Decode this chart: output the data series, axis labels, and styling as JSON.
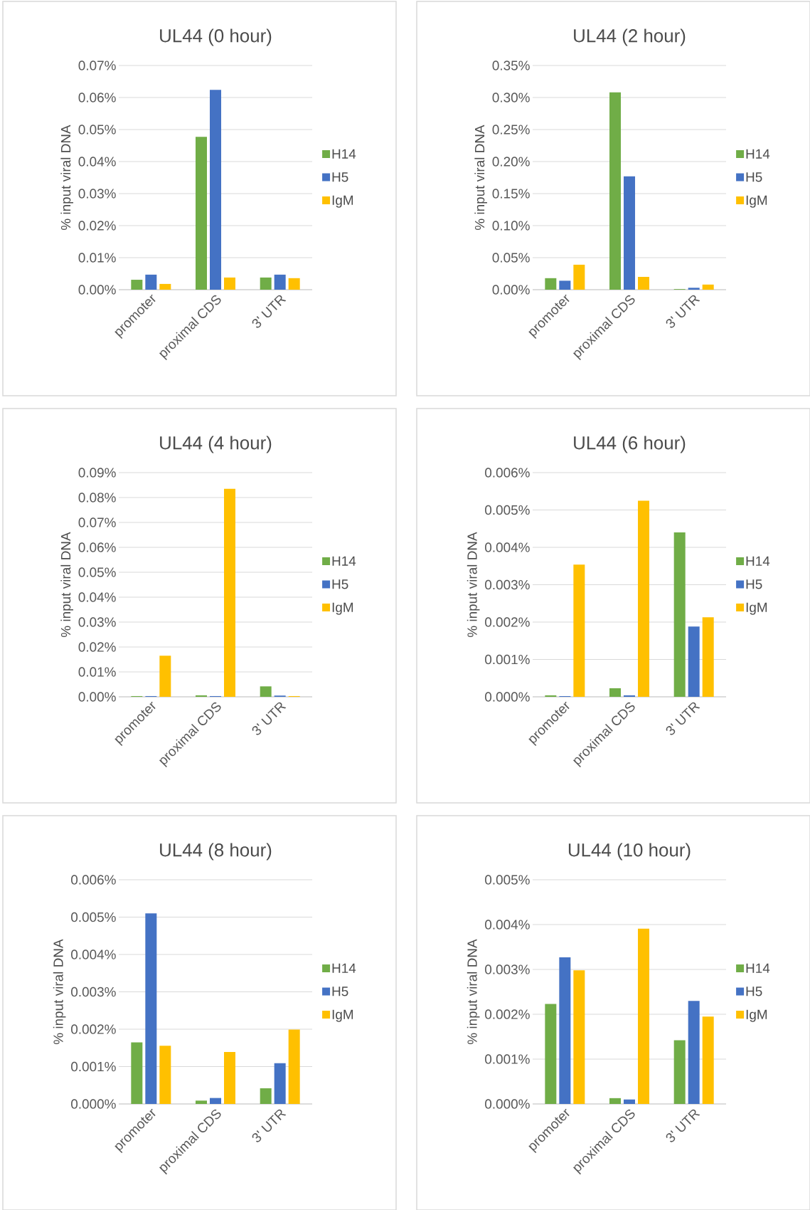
{
  "chart_data": [
    {
      "type": "bar",
      "title": "UL44 (0 hour)",
      "ylabel": "% input viral DNA",
      "categories": [
        "promoter",
        "proximal CDS",
        "3' UTR"
      ],
      "series": [
        {
          "name": "H14",
          "color": "#70ad47",
          "values": [
            0.0031,
            0.0477,
            0.0038
          ]
        },
        {
          "name": "H5",
          "color": "#4472c4",
          "values": [
            0.0047,
            0.0624,
            0.0047
          ]
        },
        {
          "name": "IgM",
          "color": "#ffc000",
          "values": [
            0.0018,
            0.0038,
            0.0036
          ]
        }
      ],
      "ylim": [
        0,
        0.07
      ],
      "yticks": [
        {
          "value": 0,
          "label": "0.00%"
        },
        {
          "value": 0.01,
          "label": "0.01%"
        },
        {
          "value": 0.02,
          "label": "0.02%"
        },
        {
          "value": 0.03,
          "label": "0.03%"
        },
        {
          "value": 0.04,
          "label": "0.04%"
        },
        {
          "value": 0.05,
          "label": "0.05%"
        },
        {
          "value": 0.06,
          "label": "0.06%"
        },
        {
          "value": 0.07,
          "label": "0.07%"
        }
      ],
      "grid": "y",
      "legend": "right"
    },
    {
      "type": "bar",
      "title": "UL44 (2 hour)",
      "ylabel": "% input viral DNA",
      "categories": [
        "promoter",
        "proximal CDS",
        "3' UTR"
      ],
      "series": [
        {
          "name": "H14",
          "color": "#70ad47",
          "values": [
            0.018,
            0.308,
            0.001
          ]
        },
        {
          "name": "H5",
          "color": "#4472c4",
          "values": [
            0.014,
            0.177,
            0.003
          ]
        },
        {
          "name": "IgM",
          "color": "#ffc000",
          "values": [
            0.039,
            0.02,
            0.008
          ]
        }
      ],
      "ylim": [
        0,
        0.35
      ],
      "yticks": [
        {
          "value": 0,
          "label": "0.00%"
        },
        {
          "value": 0.05,
          "label": "0.05%"
        },
        {
          "value": 0.1,
          "label": "0.10%"
        },
        {
          "value": 0.15,
          "label": "0.15%"
        },
        {
          "value": 0.2,
          "label": "0.20%"
        },
        {
          "value": 0.25,
          "label": "0.25%"
        },
        {
          "value": 0.3,
          "label": "0.30%"
        },
        {
          "value": 0.35,
          "label": "0.35%"
        }
      ],
      "grid": "y",
      "legend": "right"
    },
    {
      "type": "bar",
      "title": "UL44 (4 hour)",
      "ylabel": "% input viral DNA",
      "categories": [
        "promoter",
        "proximal CDS",
        "3' UTR"
      ],
      "series": [
        {
          "name": "H14",
          "color": "#70ad47",
          "values": [
            0.0003,
            0.0006,
            0.0042
          ]
        },
        {
          "name": "H5",
          "color": "#4472c4",
          "values": [
            0.0003,
            0.0003,
            0.0005
          ]
        },
        {
          "name": "IgM",
          "color": "#ffc000",
          "values": [
            0.0165,
            0.0835,
            0.0003
          ]
        }
      ],
      "ylim": [
        0,
        0.09
      ],
      "yticks": [
        {
          "value": 0,
          "label": "0.00%"
        },
        {
          "value": 0.01,
          "label": "0.01%"
        },
        {
          "value": 0.02,
          "label": "0.02%"
        },
        {
          "value": 0.03,
          "label": "0.03%"
        },
        {
          "value": 0.04,
          "label": "0.04%"
        },
        {
          "value": 0.05,
          "label": "0.05%"
        },
        {
          "value": 0.06,
          "label": "0.06%"
        },
        {
          "value": 0.07,
          "label": "0.07%"
        },
        {
          "value": 0.08,
          "label": "0.08%"
        },
        {
          "value": 0.09,
          "label": "0.09%"
        }
      ],
      "grid": "y",
      "legend": "right"
    },
    {
      "type": "bar",
      "title": "UL44 (6 hour)",
      "ylabel": "% input viral DNA",
      "categories": [
        "promoter",
        "proximal CDS",
        "3' UTR"
      ],
      "series": [
        {
          "name": "H14",
          "color": "#70ad47",
          "values": [
            4e-05,
            0.00023,
            0.0044
          ]
        },
        {
          "name": "H5",
          "color": "#4472c4",
          "values": [
            2e-05,
            4e-05,
            0.00188
          ]
        },
        {
          "name": "IgM",
          "color": "#ffc000",
          "values": [
            0.00354,
            0.00525,
            0.00213
          ]
        }
      ],
      "ylim": [
        0,
        0.006
      ],
      "yticks": [
        {
          "value": 0,
          "label": "0.000%"
        },
        {
          "value": 0.001,
          "label": "0.001%"
        },
        {
          "value": 0.002,
          "label": "0.002%"
        },
        {
          "value": 0.003,
          "label": "0.003%"
        },
        {
          "value": 0.004,
          "label": "0.004%"
        },
        {
          "value": 0.005,
          "label": "0.005%"
        },
        {
          "value": 0.006,
          "label": "0.006%"
        }
      ],
      "grid": "y",
      "legend": "right"
    },
    {
      "type": "bar",
      "title": "UL44 (8 hour)",
      "ylabel": "% input viral DNA",
      "categories": [
        "promoter",
        "proximal CDS",
        "3' UTR"
      ],
      "series": [
        {
          "name": "H14",
          "color": "#70ad47",
          "values": [
            0.00165,
            9e-05,
            0.00042
          ]
        },
        {
          "name": "H5",
          "color": "#4472c4",
          "values": [
            0.0051,
            0.00016,
            0.00109
          ]
        },
        {
          "name": "IgM",
          "color": "#ffc000",
          "values": [
            0.00156,
            0.00139,
            0.00199
          ]
        }
      ],
      "ylim": [
        0,
        0.006
      ],
      "yticks": [
        {
          "value": 0,
          "label": "0.000%"
        },
        {
          "value": 0.001,
          "label": "0.001%"
        },
        {
          "value": 0.002,
          "label": "0.002%"
        },
        {
          "value": 0.003,
          "label": "0.003%"
        },
        {
          "value": 0.004,
          "label": "0.004%"
        },
        {
          "value": 0.005,
          "label": "0.005%"
        },
        {
          "value": 0.006,
          "label": "0.006%"
        }
      ],
      "grid": "y",
      "legend": "right"
    },
    {
      "type": "bar",
      "title": "UL44 (10 hour)",
      "ylabel": "% input viral DNA",
      "categories": [
        "promoter",
        "proximal CDS",
        "3' UTR"
      ],
      "series": [
        {
          "name": "H14",
          "color": "#70ad47",
          "values": [
            0.00223,
            0.00013,
            0.00142
          ]
        },
        {
          "name": "H5",
          "color": "#4472c4",
          "values": [
            0.00327,
            0.0001,
            0.0023
          ]
        },
        {
          "name": "IgM",
          "color": "#ffc000",
          "values": [
            0.00298,
            0.00391,
            0.00195
          ]
        }
      ],
      "ylim": [
        0,
        0.005
      ],
      "yticks": [
        {
          "value": 0,
          "label": "0.000%"
        },
        {
          "value": 0.001,
          "label": "0.001%"
        },
        {
          "value": 0.002,
          "label": "0.002%"
        },
        {
          "value": 0.003,
          "label": "0.003%"
        },
        {
          "value": 0.004,
          "label": "0.004%"
        },
        {
          "value": 0.005,
          "label": "0.005%"
        }
      ],
      "grid": "y",
      "legend": "right"
    }
  ]
}
